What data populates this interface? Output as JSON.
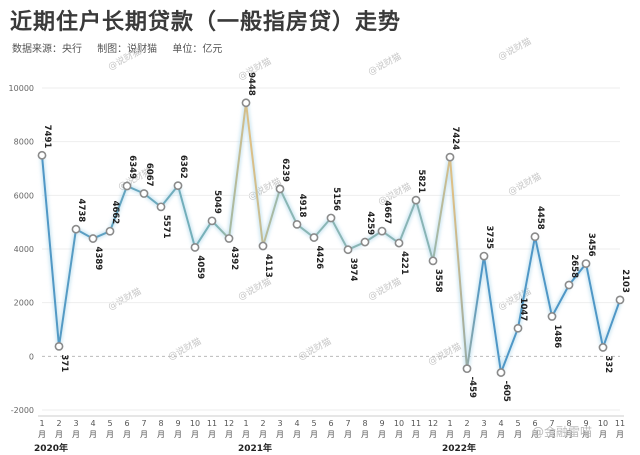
{
  "title": "近期住户长期贷款（一般指房贷）走势",
  "meta": {
    "source": "数据来源：央行",
    "maker": "制图：说财猫",
    "unit": "单位：亿元"
  },
  "watermark": "@说财猫",
  "corner_mark": "@金融雷喵",
  "colors": {
    "line_start": "#4f97c6",
    "line_warm": "#e0c084",
    "marker_stroke": "#8a8a8a",
    "zero_line": "#bbbbbb"
  },
  "chart_data": {
    "type": "line",
    "title": "近期住户长期贷款（一般指房贷）走势",
    "ylabel": "亿元",
    "ylim": [
      -2000,
      10000
    ],
    "yticks": [
      -2000,
      0,
      2000,
      4000,
      6000,
      8000,
      10000
    ],
    "x": [
      "1月",
      "2月",
      "3月",
      "4月",
      "5月",
      "6月",
      "7月",
      "8月",
      "9月",
      "10月",
      "11月",
      "12月",
      "1月",
      "2月",
      "3月",
      "4月",
      "5月",
      "6月",
      "7月",
      "8月",
      "9月",
      "10月",
      "11月",
      "12月",
      "1月",
      "2月",
      "3月",
      "4月",
      "5月",
      "6月",
      "7月",
      "8月",
      "9月",
      "10月",
      "11月"
    ],
    "x_tick_numbers": [
      "1",
      "2",
      "3",
      "4",
      "5",
      "6",
      "7",
      "8",
      "9",
      "10",
      "11",
      "12",
      "1",
      "2",
      "3",
      "4",
      "5",
      "6",
      "7",
      "8",
      "9",
      "10",
      "11",
      "12",
      "1",
      "2",
      "3",
      "4",
      "5",
      "6",
      "7",
      "8",
      "9",
      "10",
      "11"
    ],
    "x_tick_unit": "月",
    "years": [
      {
        "label": "2020年",
        "start_index": 0
      },
      {
        "label": "2021年",
        "start_index": 12
      },
      {
        "label": "2022年",
        "start_index": 24
      }
    ],
    "values": [
      7491,
      371,
      4738,
      4389,
      4662,
      6349,
      6067,
      5571,
      6362,
      4059,
      5049,
      4392,
      9448,
      4113,
      6239,
      4918,
      4426,
      5156,
      3974,
      4259,
      4667,
      4221,
      5821,
      3558,
      7424,
      -459,
      3735,
      -605,
      1047,
      4458,
      1486,
      2658,
      3456,
      332,
      2103
    ],
    "grid": true,
    "legend": "none"
  }
}
